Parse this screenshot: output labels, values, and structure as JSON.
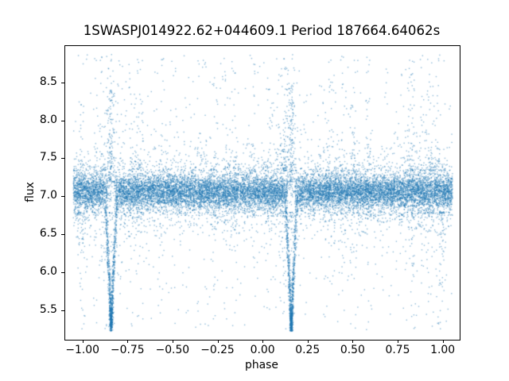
{
  "chart_data": {
    "type": "scatter",
    "title": "1SWASPJ014922.62+044609.1 Period 187664.64062s",
    "xlabel": "phase",
    "ylabel": "flux",
    "xlim": [
      -1.1,
      1.09
    ],
    "ylim": [
      5.12,
      8.99
    ],
    "xticks": {
      "values": [
        -1.0,
        -0.75,
        -0.5,
        -0.25,
        0.0,
        0.25,
        0.5,
        0.75,
        1.0
      ],
      "labels": [
        "−1.00",
        "−0.75",
        "−0.50",
        "−0.25",
        "0.00",
        "0.25",
        "0.50",
        "0.75",
        "1.00"
      ]
    },
    "yticks": {
      "values": [
        5.5,
        6.0,
        6.5,
        7.0,
        7.5,
        8.0,
        8.5
      ],
      "labels": [
        "5.5",
        "6.0",
        "6.5",
        "7.0",
        "7.5",
        "8.0",
        "8.5"
      ]
    },
    "grid": false,
    "legend": null,
    "point_color": "#1f77b4",
    "point_alpha": 0.5,
    "marker_px": 1.4,
    "background": "#ffffff",
    "series_model": {
      "seed": 20240217,
      "band": {
        "n": 15500,
        "x_min": -1.055,
        "x_max": 1.05,
        "flux_mean": 7.07,
        "flux_sigma_core": 0.115,
        "flux_sigma_wide": 0.24,
        "wide_fraction": 0.22
      },
      "eclipses": [
        {
          "phase": -0.845,
          "min_flux": 5.33,
          "n": 950,
          "half_width": 0.034,
          "top_flux": 7.0
        },
        {
          "phase": 0.155,
          "min_flux": 5.3,
          "n": 950,
          "half_width": 0.034,
          "top_flux": 7.0
        }
      ],
      "upper_outliers": {
        "n": 1150,
        "flux_base": 7.35,
        "flux_max": 8.88,
        "column_fraction": 0.6
      },
      "lower_outliers": {
        "n": 900,
        "flux_base": 6.8,
        "flux_min": 5.25,
        "column_fraction": 0.55,
        "fixed_columns": [
          -1.02,
          0.98,
          -1.0,
          1.0
        ]
      },
      "column_count": 32,
      "column_sigma": 0.009
    }
  }
}
